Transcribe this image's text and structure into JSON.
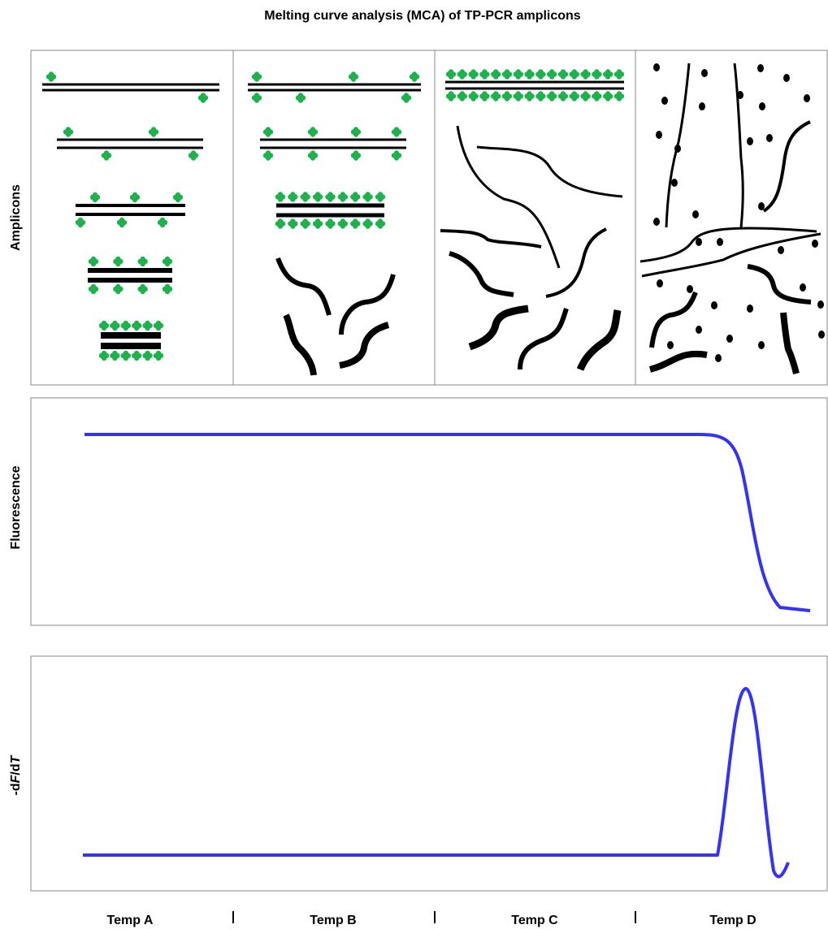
{
  "title": "Melting curve analysis (MCA) of TP-PCR amplicons",
  "panels": [
    {
      "label": "Amplicons"
    },
    {
      "label": "Fluorescence"
    },
    {
      "label_parts": [
        "-d",
        "F",
        "/d",
        "T"
      ]
    }
  ],
  "temperatures": [
    "Temp A",
    "Temp B",
    "Temp C",
    "Temp D"
  ]
}
